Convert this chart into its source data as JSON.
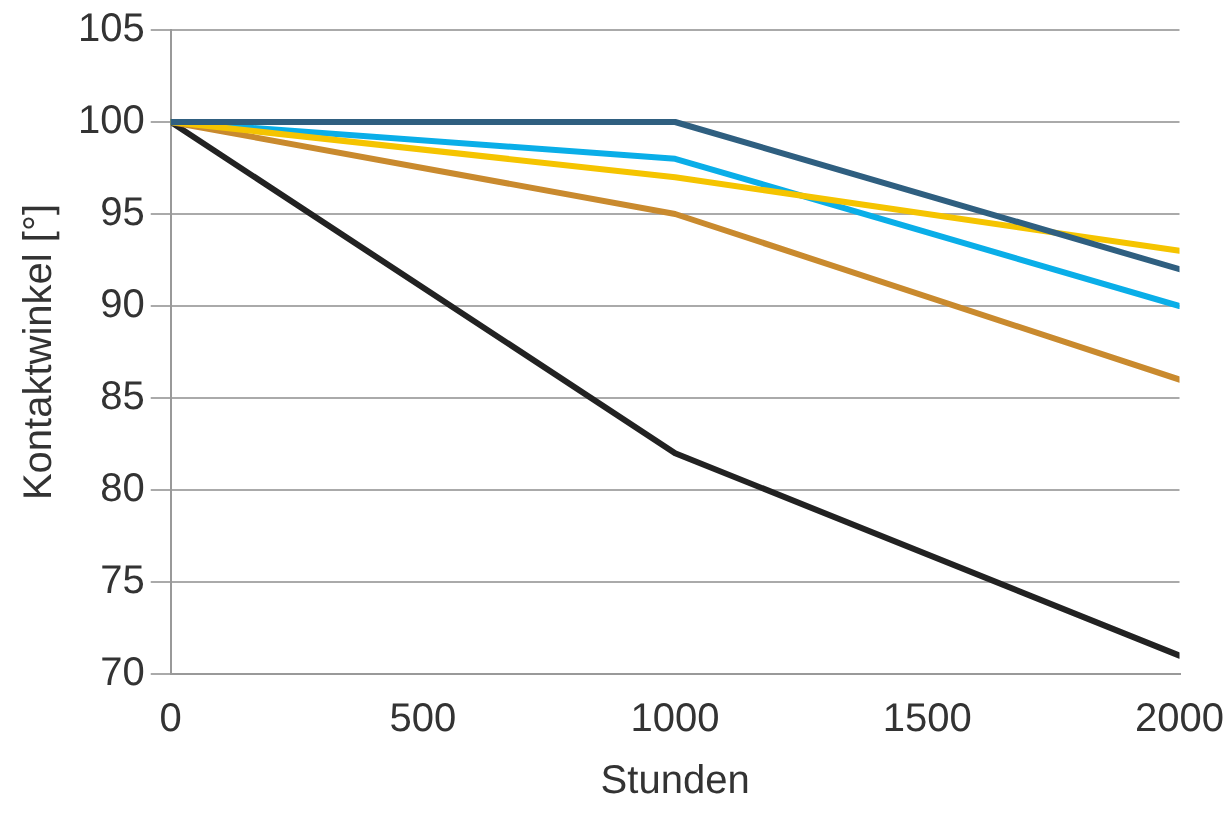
{
  "chart_data": {
    "type": "line",
    "xlabel": "Stunden",
    "ylabel": "Kontaktwinkel [°]",
    "x": [
      0,
      1000,
      2000
    ],
    "series": [
      {
        "color": "#2f5f80",
        "values": [
          100,
          100,
          92
        ]
      },
      {
        "color": "#f5c400",
        "values": [
          100,
          97,
          93
        ]
      },
      {
        "color": "#0aaee8",
        "values": [
          100,
          98,
          90
        ]
      },
      {
        "color": "#c98a2e",
        "values": [
          100,
          95,
          86
        ]
      },
      {
        "color": "#222222",
        "values": [
          100,
          82,
          71
        ]
      }
    ],
    "xlim": [
      0,
      2000
    ],
    "xticks": [
      0,
      500,
      1000,
      1500,
      2000
    ],
    "ylim": [
      70,
      105
    ],
    "yticks": [
      70,
      75,
      80,
      85,
      90,
      95,
      100,
      105
    ],
    "grid": "y",
    "marker": "none",
    "line_style": "solid",
    "legend": false
  }
}
